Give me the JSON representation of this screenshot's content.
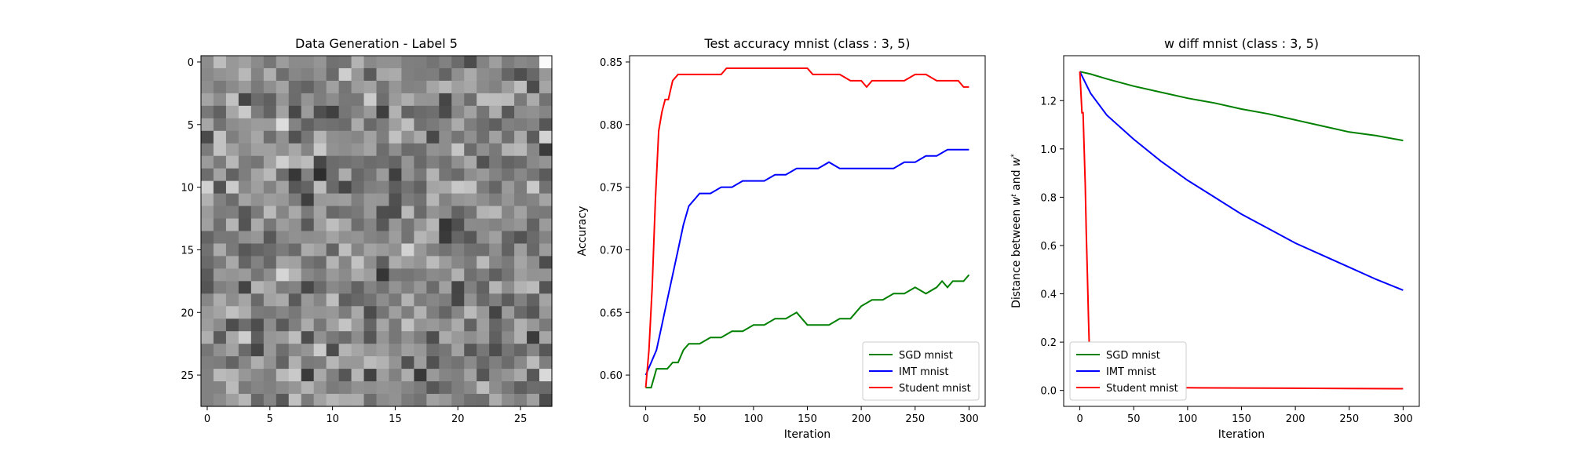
{
  "chart_data": [
    {
      "type": "heatmap",
      "title": "Data Generation - Label 5",
      "colormap": "gray",
      "rows": 28,
      "cols": 28,
      "xlim": [
        -0.5,
        27.5
      ],
      "ylim": [
        27.5,
        -0.5
      ],
      "xticks": [
        "0",
        "5",
        "10",
        "15",
        "20",
        "25"
      ],
      "yticks": [
        "0",
        "5",
        "10",
        "15",
        "20",
        "25"
      ],
      "note_values": "random-looking noise pixels, mostly mid-grey"
    },
    {
      "type": "line",
      "title": "Test accuracy mnist (class : 3, 5)",
      "xlabel": "Iteration",
      "ylabel": "Accuracy",
      "xlim": [
        -15,
        315
      ],
      "ylim": [
        0.575,
        0.855
      ],
      "xticks": [
        "0",
        "50",
        "100",
        "150",
        "200",
        "250",
        "300"
      ],
      "yticks": [
        "0.60",
        "0.65",
        "0.70",
        "0.75",
        "0.80",
        "0.85"
      ],
      "legend_position": "lower-right",
      "series": [
        {
          "name": "SGD mnist",
          "color": "#008000",
          "x": [
            0,
            5,
            10,
            15,
            20,
            25,
            30,
            35,
            40,
            45,
            50,
            60,
            70,
            80,
            90,
            100,
            110,
            120,
            130,
            140,
            150,
            160,
            170,
            180,
            190,
            200,
            210,
            220,
            230,
            240,
            250,
            260,
            270,
            275,
            280,
            285,
            290,
            295,
            300
          ],
          "y": [
            0.59,
            0.59,
            0.605,
            0.605,
            0.605,
            0.61,
            0.61,
            0.62,
            0.625,
            0.625,
            0.625,
            0.63,
            0.63,
            0.635,
            0.635,
            0.64,
            0.64,
            0.645,
            0.645,
            0.65,
            0.64,
            0.64,
            0.64,
            0.645,
            0.645,
            0.655,
            0.66,
            0.66,
            0.665,
            0.665,
            0.67,
            0.665,
            0.67,
            0.675,
            0.67,
            0.675,
            0.675,
            0.675,
            0.68
          ]
        },
        {
          "name": "IMT mnist",
          "color": "#0000ff",
          "x": [
            0,
            5,
            10,
            15,
            20,
            25,
            30,
            35,
            40,
            45,
            50,
            60,
            70,
            80,
            90,
            100,
            110,
            120,
            130,
            140,
            150,
            160,
            170,
            180,
            190,
            200,
            210,
            220,
            230,
            240,
            250,
            260,
            270,
            280,
            290,
            300
          ],
          "y": [
            0.6,
            0.61,
            0.62,
            0.64,
            0.66,
            0.68,
            0.7,
            0.72,
            0.735,
            0.74,
            0.745,
            0.745,
            0.75,
            0.75,
            0.755,
            0.755,
            0.755,
            0.76,
            0.76,
            0.765,
            0.765,
            0.765,
            0.77,
            0.765,
            0.765,
            0.765,
            0.765,
            0.765,
            0.765,
            0.77,
            0.77,
            0.775,
            0.775,
            0.78,
            0.78,
            0.78
          ]
        },
        {
          "name": "Student mnist",
          "color": "#ff0000",
          "x": [
            0,
            3,
            6,
            9,
            12,
            15,
            18,
            21,
            25,
            30,
            40,
            50,
            60,
            70,
            75,
            80,
            100,
            120,
            140,
            150,
            155,
            160,
            180,
            190,
            200,
            205,
            210,
            220,
            230,
            240,
            250,
            260,
            270,
            280,
            290,
            295,
            300
          ],
          "y": [
            0.59,
            0.62,
            0.67,
            0.74,
            0.795,
            0.81,
            0.82,
            0.82,
            0.835,
            0.84,
            0.84,
            0.84,
            0.84,
            0.84,
            0.845,
            0.845,
            0.845,
            0.845,
            0.845,
            0.845,
            0.84,
            0.84,
            0.84,
            0.835,
            0.835,
            0.83,
            0.835,
            0.835,
            0.835,
            0.835,
            0.84,
            0.84,
            0.835,
            0.835,
            0.835,
            0.83,
            0.83
          ]
        }
      ]
    },
    {
      "type": "line",
      "title": "w diff mnist (class : 3, 5)",
      "xlabel": "Iteration",
      "ylabel": "Distance between w^t and w^*",
      "xlim": [
        -15,
        315
      ],
      "ylim": [
        -0.066,
        1.386
      ],
      "xticks": [
        "0",
        "50",
        "100",
        "150",
        "200",
        "250",
        "300"
      ],
      "yticks": [
        "0.0",
        "0.2",
        "0.4",
        "0.6",
        "0.8",
        "1.0",
        "1.2"
      ],
      "legend_position": "lower-left",
      "series": [
        {
          "name": "SGD mnist",
          "color": "#008000",
          "x": [
            0,
            10,
            25,
            50,
            75,
            100,
            125,
            150,
            175,
            200,
            225,
            250,
            275,
            300
          ],
          "y": [
            1.32,
            1.31,
            1.29,
            1.26,
            1.235,
            1.21,
            1.19,
            1.165,
            1.145,
            1.12,
            1.095,
            1.07,
            1.055,
            1.035
          ]
        },
        {
          "name": "IMT mnist",
          "color": "#0000ff",
          "x": [
            0,
            10,
            25,
            50,
            75,
            100,
            125,
            150,
            175,
            200,
            225,
            250,
            275,
            300
          ],
          "y": [
            1.32,
            1.23,
            1.14,
            1.04,
            0.95,
            0.87,
            0.8,
            0.73,
            0.67,
            0.61,
            0.56,
            0.51,
            0.46,
            0.415
          ]
        },
        {
          "name": "Student mnist",
          "color": "#ff0000",
          "x": [
            0,
            2,
            3,
            4,
            5,
            6,
            7,
            8,
            9,
            10,
            11,
            12,
            15,
            20,
            50,
            100,
            150,
            200,
            250,
            300
          ],
          "y": [
            1.32,
            1.15,
            1.15,
            1.0,
            0.85,
            0.65,
            0.48,
            0.3,
            0.15,
            0.06,
            0.03,
            0.02,
            0.015,
            0.013,
            0.012,
            0.011,
            0.01,
            0.009,
            0.008,
            0.007
          ]
        }
      ]
    }
  ]
}
